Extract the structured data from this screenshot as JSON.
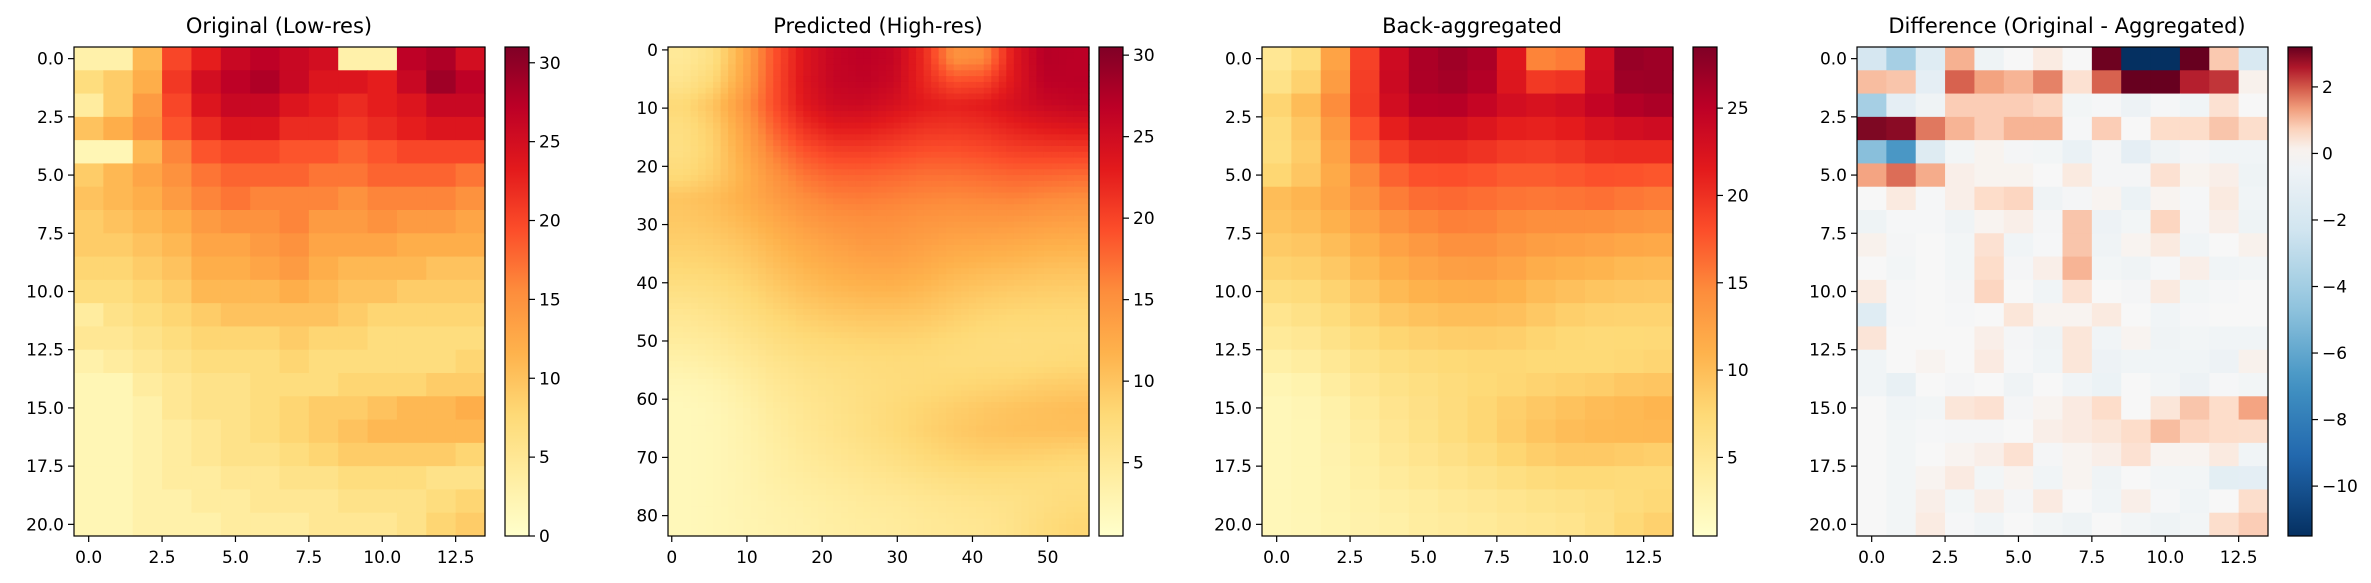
{
  "chart_data": [
    {
      "type": "heatmap",
      "title": "Original (Low-res)",
      "rows": 21,
      "cols": 14,
      "x_ticks": [
        "0.0",
        "2.5",
        "5.0",
        "7.5",
        "10.0",
        "12.5"
      ],
      "x_tick_values": [
        0,
        2.5,
        5,
        7.5,
        10,
        12.5
      ],
      "y_ticks": [
        "0.0",
        "2.5",
        "5.0",
        "7.5",
        "10.0",
        "12.5",
        "15.0",
        "17.5",
        "20.0"
      ],
      "y_tick_values": [
        0,
        2.5,
        5,
        7.5,
        10,
        12.5,
        15,
        17.5,
        20
      ],
      "xlim": [
        -0.5,
        13.5
      ],
      "ylim": [
        20.5,
        -0.5
      ],
      "colormap": "YlOrRd",
      "colorbar_range": [
        0,
        31
      ],
      "colorbar_ticks": [
        "0",
        "5",
        "10",
        "15",
        "20",
        "25",
        "30"
      ],
      "colorbar_tick_values": [
        0,
        5,
        10,
        15,
        20,
        25,
        30
      ],
      "values": [
        [
          3,
          3,
          11,
          20,
          23,
          26,
          27,
          26,
          25,
          3,
          3,
          27,
          28,
          25
        ],
        [
          7,
          9,
          12,
          21,
          25,
          27,
          28,
          26,
          24,
          24,
          23,
          26,
          29,
          27
        ],
        [
          4,
          9,
          14,
          20,
          24,
          26,
          26,
          24,
          23,
          22,
          23,
          24,
          26,
          26
        ],
        [
          10,
          12,
          15,
          19,
          22,
          24,
          24,
          22,
          22,
          21,
          22,
          23,
          24,
          24
        ],
        [
          2,
          2,
          11,
          16,
          19,
          20,
          20,
          19,
          19,
          18,
          19,
          20,
          20,
          20
        ],
        [
          9,
          11,
          13,
          15,
          17,
          18,
          18,
          18,
          17,
          17,
          18,
          18,
          18,
          17
        ],
        [
          10,
          11,
          12,
          14,
          16,
          17,
          16,
          16,
          16,
          15,
          16,
          16,
          16,
          15
        ],
        [
          9,
          10,
          11,
          12,
          14,
          15,
          15,
          16,
          14,
          14,
          15,
          14,
          14,
          13
        ],
        [
          9,
          9,
          10,
          11,
          13,
          13,
          14,
          15,
          13,
          13,
          13,
          12,
          12,
          12
        ],
        [
          8,
          8,
          9,
          10,
          12,
          12,
          13,
          14,
          12,
          11,
          11,
          11,
          10,
          10
        ],
        [
          7,
          7,
          8,
          9,
          11,
          11,
          11,
          12,
          11,
          10,
          10,
          9,
          9,
          9
        ],
        [
          4,
          6,
          7,
          8,
          9,
          10,
          10,
          10,
          10,
          9,
          8,
          8,
          8,
          8
        ],
        [
          5,
          5,
          6,
          7,
          8,
          8,
          8,
          9,
          8,
          8,
          7,
          7,
          7,
          7
        ],
        [
          3,
          4,
          5,
          6,
          7,
          7,
          7,
          8,
          7,
          7,
          7,
          7,
          7,
          8
        ],
        [
          2,
          2,
          4,
          5,
          6,
          6,
          7,
          7,
          7,
          8,
          8,
          8,
          9,
          9
        ],
        [
          2,
          2,
          3,
          5,
          6,
          6,
          7,
          8,
          9,
          9,
          10,
          11,
          11,
          12
        ],
        [
          2,
          2,
          3,
          4,
          5,
          6,
          7,
          8,
          9,
          10,
          11,
          11,
          11,
          11
        ],
        [
          2,
          2,
          3,
          4,
          5,
          6,
          6,
          7,
          8,
          9,
          9,
          9,
          9,
          8
        ],
        [
          2,
          2,
          3,
          4,
          4,
          5,
          5,
          6,
          6,
          7,
          7,
          7,
          6,
          6
        ],
        [
          2,
          2,
          3,
          3,
          4,
          4,
          5,
          5,
          5,
          6,
          6,
          6,
          7,
          8
        ],
        [
          2,
          2,
          3,
          3,
          3,
          4,
          4,
          4,
          5,
          5,
          5,
          6,
          8,
          9
        ]
      ]
    },
    {
      "type": "heatmap",
      "title": "Predicted (High-res)",
      "rows": 84,
      "cols": 56,
      "upsample_from": [
        21,
        14
      ],
      "x_ticks": [
        "0",
        "10",
        "20",
        "30",
        "40",
        "50"
      ],
      "x_tick_values": [
        0,
        10,
        20,
        30,
        40,
        50
      ],
      "y_ticks": [
        "0",
        "10",
        "20",
        "30",
        "40",
        "50",
        "60",
        "70",
        "80"
      ],
      "y_tick_values": [
        0,
        10,
        20,
        30,
        40,
        50,
        60,
        70,
        80
      ],
      "xlim": [
        -0.5,
        55.5
      ],
      "ylim": [
        83.5,
        -0.5
      ],
      "colormap": "YlOrRd",
      "colorbar_range": [
        0.5,
        30.5
      ],
      "colorbar_ticks": [
        "5",
        "10",
        "15",
        "20",
        "25",
        "30"
      ],
      "colorbar_tick_values": [
        5,
        10,
        15,
        20,
        25,
        30
      ]
    },
    {
      "type": "heatmap",
      "title": "Back-aggregated",
      "rows": 21,
      "cols": 14,
      "x_ticks": [
        "0.0",
        "2.5",
        "5.0",
        "7.5",
        "10.0",
        "12.5"
      ],
      "x_tick_values": [
        0,
        2.5,
        5,
        7.5,
        10,
        12.5
      ],
      "y_ticks": [
        "0.0",
        "2.5",
        "5.0",
        "7.5",
        "10.0",
        "12.5",
        "15.0",
        "17.5",
        "20.0"
      ],
      "y_tick_values": [
        0,
        2.5,
        5,
        7.5,
        10,
        12.5,
        15,
        17.5,
        20
      ],
      "xlim": [
        -0.5,
        13.5
      ],
      "ylim": [
        20.5,
        -0.5
      ],
      "colormap": "YlOrRd",
      "colorbar_range": [
        0.5,
        28.5
      ],
      "colorbar_ticks": [
        "5",
        "10",
        "15",
        "20",
        "25"
      ],
      "colorbar_tick_values": [
        5,
        10,
        15,
        20,
        25
      ]
    },
    {
      "type": "heatmap",
      "title": "Difference (Original - Aggregated)",
      "rows": 21,
      "cols": 14,
      "x_ticks": [
        "0.0",
        "2.5",
        "5.0",
        "7.5",
        "10.0",
        "12.5"
      ],
      "x_tick_values": [
        0,
        2.5,
        5,
        7.5,
        10,
        12.5
      ],
      "y_ticks": [
        "0.0",
        "2.5",
        "5.0",
        "7.5",
        "10.0",
        "12.5",
        "15.0",
        "17.5",
        "20.0"
      ],
      "y_tick_values": [
        0,
        2.5,
        5,
        7.5,
        10,
        12.5,
        15,
        17.5,
        20
      ],
      "xlim": [
        -0.5,
        13.5
      ],
      "ylim": [
        20.5,
        -0.5
      ],
      "colormap": "RdBu_r",
      "colorbar_range": [
        -11.5,
        3.2
      ],
      "colorbar_ticks": [
        "2",
        "0",
        "−2",
        "−4",
        "−6",
        "−8",
        "−10"
      ],
      "colorbar_tick_values": [
        2,
        0,
        -2,
        -4,
        -6,
        -8,
        -10
      ]
    }
  ]
}
